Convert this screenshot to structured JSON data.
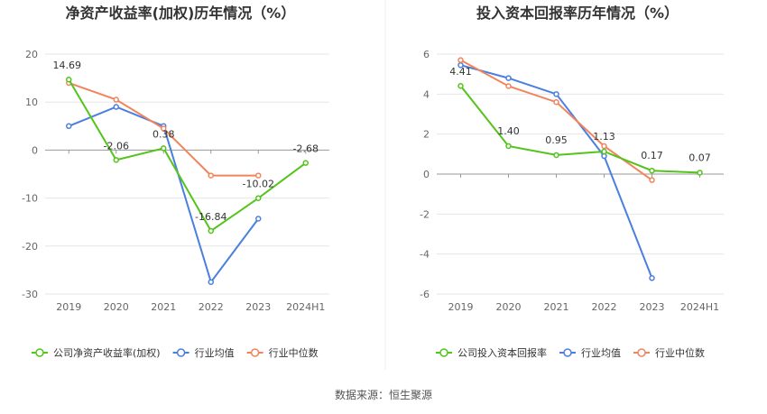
{
  "source": "数据来源：恒生聚源",
  "colors": {
    "company": "#52c41a",
    "avg": "#4a7fe0",
    "median": "#f2845c"
  },
  "legend": [
    "行业均值",
    "行业中位数"
  ],
  "chart_data": [
    {
      "type": "line",
      "title": "净资产收益率(加权)历年情况（%）",
      "categories": [
        "2019",
        "2020",
        "2021",
        "2022",
        "2023",
        "2024H1"
      ],
      "ylim": [
        -30,
        20
      ],
      "yticks": [
        20,
        10,
        0,
        -10,
        -20,
        -30
      ],
      "legend_position": "bottom",
      "series": [
        {
          "name": "公司净资产收益率(加权)",
          "role": "company",
          "values": [
            14.69,
            -2.06,
            0.38,
            -16.84,
            -10.02,
            -2.68
          ],
          "labels": [
            "14.69",
            "-2.06",
            "0.38",
            "-16.84",
            "-10.02",
            "-2.68"
          ]
        },
        {
          "name": "行业均值",
          "role": "avg",
          "values": [
            5.0,
            9.0,
            5.0,
            -27.5,
            -14.3,
            null
          ]
        },
        {
          "name": "行业中位数",
          "role": "median",
          "values": [
            14.0,
            10.5,
            4.5,
            -5.3,
            -5.3,
            null
          ]
        }
      ]
    },
    {
      "type": "line",
      "title": "投入资本回报率历年情况（%）",
      "categories": [
        "2019",
        "2020",
        "2021",
        "2022",
        "2023",
        "2024H1"
      ],
      "ylim": [
        -6,
        6
      ],
      "yticks": [
        6,
        4,
        2,
        0,
        -2,
        -4,
        -6
      ],
      "legend_position": "bottom",
      "series": [
        {
          "name": "公司投入资本回报率",
          "role": "company",
          "values": [
            4.41,
            1.4,
            0.95,
            1.13,
            0.17,
            0.07
          ],
          "labels": [
            "4.41",
            "1.40",
            "0.95",
            "1.13",
            "0.17",
            "0.07"
          ]
        },
        {
          "name": "行业均值",
          "role": "avg",
          "values": [
            5.45,
            4.8,
            4.0,
            0.9,
            -5.2,
            null
          ]
        },
        {
          "name": "行业中位数",
          "role": "median",
          "values": [
            5.7,
            4.4,
            3.6,
            1.4,
            -0.3,
            null
          ]
        }
      ]
    }
  ]
}
